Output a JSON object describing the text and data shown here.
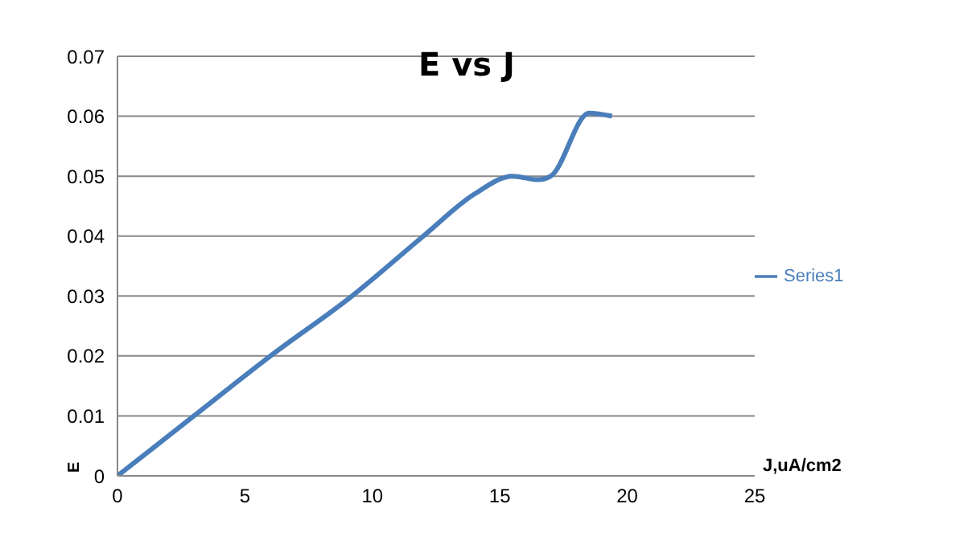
{
  "chart_data": {
    "type": "line",
    "title": "E vs J",
    "xlabel": "J,uA/cm2",
    "ylabel": "E",
    "x": [
      0,
      3,
      6,
      9.2,
      12,
      14,
      15.5,
      16.5,
      17,
      18.5,
      19.4
    ],
    "series": [
      {
        "name": "Series1",
        "color": "#4a7ebb",
        "values": [
          0,
          0.01,
          0.02,
          0.03,
          0.04,
          0.047,
          0.05,
          0.0494,
          0.05,
          0.0605,
          0.06
        ]
      }
    ],
    "xlim": [
      0,
      25
    ],
    "xticks": [
      0,
      5,
      10,
      15,
      20,
      25
    ],
    "ylim": [
      0,
      0.07
    ],
    "yticks": [
      0,
      0.01,
      0.02,
      0.03,
      0.04,
      0.05,
      0.06,
      0.07
    ],
    "grid": "y",
    "legend": "right",
    "marker": "none",
    "line_style": "solid"
  }
}
